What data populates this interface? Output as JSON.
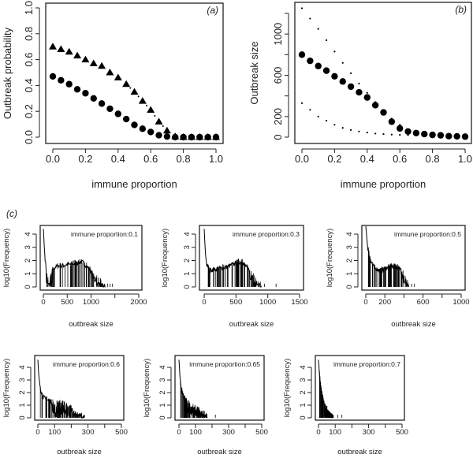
{
  "chart_data": [
    {
      "type": "scatter",
      "panel_label": "(a)",
      "xlabel": "immune proportion",
      "ylabel": "Outbreak probability",
      "xlim": [
        0,
        1
      ],
      "ylim": [
        0,
        1
      ],
      "xticks": [
        "0.0",
        "0.2",
        "0.4",
        "0.6",
        "0.8",
        "1.0"
      ],
      "yticks": [
        "0.0",
        "0.2",
        "0.4",
        "0.6",
        "0.8",
        "1.0"
      ],
      "x": [
        0,
        0.05,
        0.1,
        0.15,
        0.2,
        0.25,
        0.3,
        0.35,
        0.4,
        0.45,
        0.5,
        0.55,
        0.6,
        0.65,
        0.7,
        0.75,
        0.8,
        0.85,
        0.9,
        0.95,
        1.0
      ],
      "series": [
        {
          "marker": "triangle",
          "values": [
            0.7,
            0.68,
            0.66,
            0.63,
            0.6,
            0.57,
            0.55,
            0.5,
            0.46,
            0.41,
            0.35,
            0.28,
            0.21,
            0.12,
            0.05,
            0.005,
            0,
            0,
            0,
            0,
            0
          ]
        },
        {
          "marker": "circle",
          "values": [
            0.47,
            0.44,
            0.41,
            0.37,
            0.34,
            0.3,
            0.26,
            0.22,
            0.18,
            0.14,
            0.095,
            0.065,
            0.04,
            0.015,
            0.005,
            0,
            0,
            0,
            0,
            0,
            0
          ]
        }
      ],
      "grid": false
    },
    {
      "type": "scatter",
      "panel_label": "(b)",
      "xlabel": "immune proportion",
      "ylabel": "Outbreak size",
      "xlim": [
        0,
        1
      ],
      "ylim": [
        0,
        1200
      ],
      "xticks": [
        "0.0",
        "0.2",
        "0.4",
        "0.6",
        "0.8",
        "1.0"
      ],
      "yticks": [
        "0",
        "200",
        "",
        "600",
        "",
        "1000",
        ""
      ],
      "x": [
        0,
        0.05,
        0.1,
        0.15,
        0.2,
        0.25,
        0.3,
        0.35,
        0.4,
        0.45,
        0.5,
        0.55,
        0.6,
        0.65,
        0.7,
        0.75,
        0.8,
        0.85,
        0.9,
        0.95,
        1.0
      ],
      "series": [
        {
          "marker": "circle",
          "values": [
            800,
            740,
            690,
            645,
            590,
            540,
            490,
            435,
            385,
            310,
            240,
            150,
            85,
            55,
            40,
            30,
            22,
            18,
            10,
            8,
            5
          ]
        },
        {
          "marker": "dot",
          "x": [
            0,
            0.05,
            0.1,
            0.15,
            0.2,
            0.25,
            0.3,
            0.35,
            0.4,
            0.45,
            0.5,
            0.55,
            0.6,
            0.65,
            0.7,
            0.75,
            0.8
          ],
          "values": [
            1250,
            1150,
            1050,
            940,
            830,
            720,
            620,
            520,
            430,
            340,
            260,
            180,
            120,
            75,
            45,
            25,
            15
          ]
        },
        {
          "marker": "dot",
          "x": [
            0,
            0.05,
            0.1,
            0.15,
            0.2,
            0.25,
            0.3,
            0.35,
            0.4,
            0.45,
            0.5,
            0.55,
            0.6,
            0.65,
            0.7,
            0.75,
            0.8
          ],
          "values": [
            330,
            265,
            200,
            160,
            120,
            90,
            70,
            55,
            45,
            35,
            30,
            25,
            22,
            20,
            18,
            15,
            12
          ]
        }
      ],
      "grid": false
    },
    {
      "type": "histogram",
      "panel_label": "(c)",
      "annotation": "immune proportion:0.1",
      "xlabel": "outbreak size",
      "ylabel": "log10(Frequency)",
      "xlim": [
        0,
        2000
      ],
      "ylim": [
        0,
        4
      ],
      "xtick_values": [
        0,
        500,
        1000,
        1500,
        2000
      ],
      "xticks": [
        "0",
        "500",
        "1000",
        "",
        "2000"
      ],
      "yticks": [
        "0",
        "1",
        "2",
        "3",
        "4"
      ],
      "curve": [
        [
          0,
          4.4
        ],
        [
          20,
          3
        ],
        [
          40,
          2
        ],
        [
          70,
          1
        ],
        [
          100,
          0.5
        ],
        [
          130,
          0.6
        ],
        [
          180,
          1.2
        ],
        [
          250,
          1.5
        ],
        [
          300,
          1.6
        ],
        [
          400,
          1.6
        ],
        [
          500,
          1.7
        ],
        [
          600,
          1.7
        ],
        [
          700,
          1.8
        ],
        [
          800,
          1.9
        ],
        [
          850,
          1.8
        ],
        [
          900,
          1.6
        ],
        [
          950,
          1.4
        ],
        [
          1000,
          1.2
        ],
        [
          1050,
          0.9
        ],
        [
          1100,
          0.7
        ],
        [
          1150,
          0.5
        ],
        [
          1200,
          0.4
        ],
        [
          1250,
          0.2
        ],
        [
          1300,
          0.1
        ]
      ],
      "isolated": [
        1350,
        1400,
        1450
      ]
    },
    {
      "type": "histogram",
      "annotation": "immune proportion:0.3",
      "xlabel": "outbreak size",
      "ylabel": "log10(Frequency)",
      "xlim": [
        0,
        1500
      ],
      "ylim": [
        0,
        4
      ],
      "xtick_values": [
        0,
        500,
        1000,
        1500
      ],
      "xticks": [
        "0",
        "500",
        "1000",
        "1500"
      ],
      "yticks": [
        "0",
        "1",
        "2",
        "3",
        "4"
      ],
      "curve": [
        [
          0,
          4.4
        ],
        [
          20,
          2.5
        ],
        [
          40,
          1.7
        ],
        [
          80,
          1.3
        ],
        [
          150,
          1.3
        ],
        [
          250,
          1.4
        ],
        [
          350,
          1.5
        ],
        [
          450,
          1.7
        ],
        [
          550,
          1.9
        ],
        [
          600,
          1.85
        ],
        [
          650,
          1.6
        ],
        [
          700,
          1.3
        ],
        [
          750,
          1.0
        ],
        [
          800,
          0.6
        ],
        [
          850,
          0.3
        ],
        [
          900,
          0.1
        ]
      ],
      "isolated": [
        950,
        1130
      ]
    },
    {
      "type": "histogram",
      "annotation": "immune proportion:0.5",
      "xlabel": "outbreak size",
      "ylabel": "log10(Frequency)",
      "xlim": [
        0,
        1000
      ],
      "ylim": [
        0,
        4
      ],
      "xtick_values": [
        0,
        200,
        400,
        600,
        800,
        1000
      ],
      "xticks": [
        "0",
        "200",
        "",
        "600",
        "",
        "1000"
      ],
      "yticks": [
        "0",
        "1",
        "2",
        "3",
        "4"
      ],
      "curve": [
        [
          0,
          4.6
        ],
        [
          20,
          3
        ],
        [
          40,
          2.3
        ],
        [
          70,
          1.7
        ],
        [
          100,
          1.4
        ],
        [
          150,
          1.25
        ],
        [
          200,
          1.35
        ],
        [
          250,
          1.5
        ],
        [
          300,
          1.6
        ],
        [
          350,
          1.4
        ],
        [
          400,
          0.9
        ],
        [
          430,
          0.4
        ],
        [
          450,
          0.1
        ]
      ],
      "isolated": [
        480,
        510
      ]
    },
    {
      "type": "histogram",
      "annotation": "immune proportion:0.6",
      "xlabel": "outbreak size",
      "ylabel": "log10(Frequency)",
      "xlim": [
        0,
        500
      ],
      "ylim": [
        0,
        4
      ],
      "xtick_values": [
        0,
        100,
        200,
        300,
        400,
        500
      ],
      "xticks": [
        "0",
        "100",
        "",
        "300",
        "",
        "500"
      ],
      "yticks": [
        "0",
        "1",
        "2",
        "3",
        "4"
      ],
      "curve": [
        [
          0,
          4.6
        ],
        [
          5,
          3.5
        ],
        [
          10,
          2.8
        ],
        [
          20,
          2.1
        ],
        [
          30,
          1.7
        ],
        [
          50,
          1.45
        ],
        [
          80,
          1.25
        ],
        [
          100,
          1.1
        ],
        [
          130,
          1.15
        ],
        [
          160,
          1.05
        ],
        [
          190,
          0.9
        ],
        [
          210,
          0.6
        ],
        [
          230,
          0.3
        ],
        [
          260,
          0.2
        ],
        [
          280,
          0.1
        ]
      ],
      "isolated": []
    },
    {
      "type": "histogram",
      "annotation": "immune proportion:0.65",
      "xlabel": "outbreak size",
      "ylabel": "log10(Frequency)",
      "xlim": [
        0,
        500
      ],
      "ylim": [
        0,
        4
      ],
      "xtick_values": [
        0,
        100,
        200,
        300,
        400,
        500
      ],
      "xticks": [
        "0",
        "100",
        "",
        "300",
        "",
        "500"
      ],
      "yticks": [
        "0",
        "1",
        "2",
        "3",
        "4"
      ],
      "curve": [
        [
          0,
          4.6
        ],
        [
          5,
          3.5
        ],
        [
          10,
          2.7
        ],
        [
          20,
          2.0
        ],
        [
          30,
          1.6
        ],
        [
          50,
          1.2
        ],
        [
          80,
          0.9
        ],
        [
          100,
          0.8
        ],
        [
          120,
          0.6
        ],
        [
          150,
          0.3
        ],
        [
          170,
          0.1
        ]
      ],
      "isolated": [
        220
      ]
    },
    {
      "type": "histogram",
      "annotation": "immune proportion:0.7",
      "xlabel": "outbreak size",
      "ylabel": "log10(Frequency)",
      "xlim": [
        0,
        500
      ],
      "ylim": [
        0,
        4
      ],
      "xtick_values": [
        0,
        100,
        200,
        300,
        400,
        500
      ],
      "xticks": [
        "0",
        "100",
        "",
        "300",
        "",
        "500"
      ],
      "yticks": [
        "0",
        "1",
        "2",
        "3",
        "4"
      ],
      "curve": [
        [
          0,
          4.6
        ],
        [
          5,
          3.6
        ],
        [
          10,
          2.8
        ],
        [
          20,
          1.9
        ],
        [
          30,
          1.3
        ],
        [
          45,
          0.8
        ],
        [
          60,
          0.4
        ],
        [
          75,
          0.2
        ],
        [
          90,
          0.1
        ]
      ],
      "isolated": [
        115,
        140
      ]
    }
  ]
}
